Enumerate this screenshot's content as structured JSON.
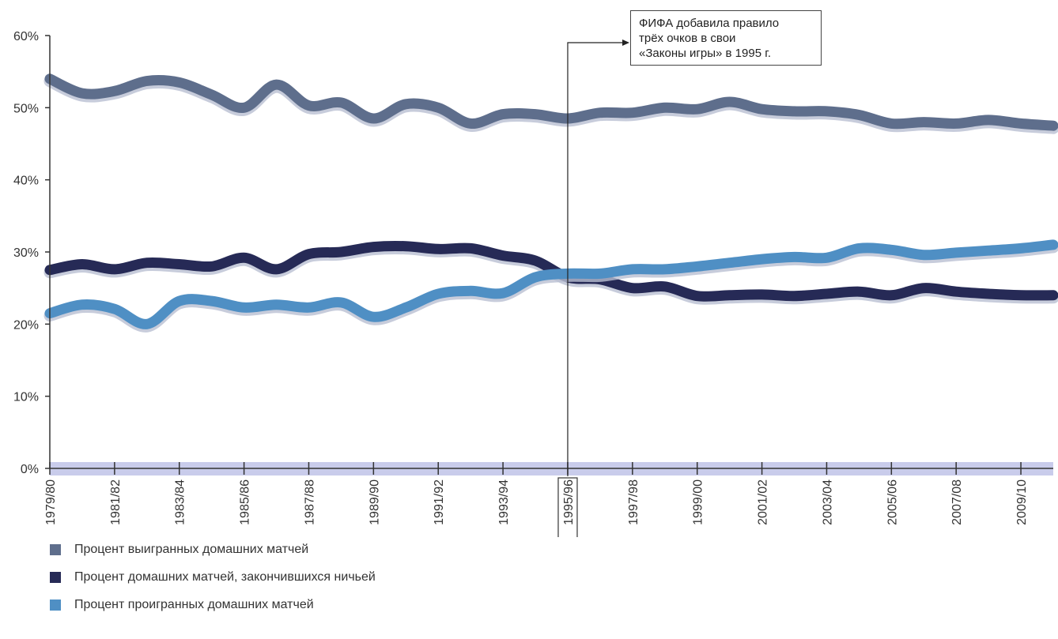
{
  "chart_data": {
    "type": "line",
    "title": "",
    "xlabel": "",
    "ylabel": "",
    "ylim": [
      0,
      60
    ],
    "yticks": [
      "0%",
      "10%",
      "20%",
      "30%",
      "40%",
      "50%",
      "60%"
    ],
    "yticks_values": [
      0,
      10,
      20,
      30,
      40,
      50,
      60
    ],
    "grid": false,
    "legend_position": "bottom-left",
    "x_labels": [
      "1979/80",
      "1981/82",
      "1983/84",
      "1985/86",
      "1987/88",
      "1989/90",
      "1991/92",
      "1993/94",
      "1995/96",
      "1997/98",
      "1999/00",
      "2001/02",
      "2003/04",
      "2005/06",
      "2007/08",
      "2009/10"
    ],
    "x_start_year": 1979,
    "x_end_year": 2009,
    "highlighted_label": "1995/96",
    "annotation": {
      "lines": [
        "ФИФА добавила правило",
        "трёх очков в свои",
        "«Законы игры» в 1995 г."
      ],
      "x": 1995
    },
    "series": [
      {
        "name": "Процент выигранных домашних матчей",
        "color": "#5e6e8c",
        "points": [
          [
            1979,
            54
          ],
          [
            1980,
            52
          ],
          [
            1981,
            52.3
          ],
          [
            1982,
            53.7
          ],
          [
            1983,
            53.5
          ],
          [
            1984,
            51.8
          ],
          [
            1985,
            50
          ],
          [
            1986,
            53.2
          ],
          [
            1987,
            50.3
          ],
          [
            1988,
            50.7
          ],
          [
            1989,
            48.5
          ],
          [
            1990,
            50.5
          ],
          [
            1991,
            50
          ],
          [
            1992,
            47.8
          ],
          [
            1993,
            49.1
          ],
          [
            1994,
            49.1
          ],
          [
            1995,
            48.5
          ],
          [
            1996,
            49.3
          ],
          [
            1997,
            49.3
          ],
          [
            1998,
            50
          ],
          [
            1999,
            49.8
          ],
          [
            2000,
            50.8
          ],
          [
            2001,
            49.8
          ],
          [
            2002,
            49.5
          ],
          [
            2003,
            49.5
          ],
          [
            2004,
            49
          ],
          [
            2005,
            47.8
          ],
          [
            2006,
            48
          ],
          [
            2007,
            47.8
          ],
          [
            2008,
            48.3
          ],
          [
            2009,
            47.8
          ],
          [
            2010,
            47.5
          ]
        ]
      },
      {
        "name": "Процент домашних матчей, закончившихся ничьей",
        "color": "#262a56",
        "points": [
          [
            1979,
            27.5
          ],
          [
            1980,
            28.3
          ],
          [
            1981,
            27.6
          ],
          [
            1982,
            28.5
          ],
          [
            1983,
            28.3
          ],
          [
            1984,
            28
          ],
          [
            1985,
            29.2
          ],
          [
            1986,
            27.6
          ],
          [
            1987,
            29.7
          ],
          [
            1988,
            30
          ],
          [
            1989,
            30.7
          ],
          [
            1990,
            30.8
          ],
          [
            1991,
            30.4
          ],
          [
            1992,
            30.5
          ],
          [
            1993,
            29.5
          ],
          [
            1994,
            28.8
          ],
          [
            1995,
            26.5
          ],
          [
            1996,
            26.2
          ],
          [
            1997,
            25
          ],
          [
            1998,
            25.2
          ],
          [
            1999,
            23.9
          ],
          [
            2000,
            24
          ],
          [
            2001,
            24.1
          ],
          [
            2002,
            23.9
          ],
          [
            2003,
            24.2
          ],
          [
            2004,
            24.5
          ],
          [
            2005,
            24
          ],
          [
            2006,
            25
          ],
          [
            2007,
            24.5
          ],
          [
            2008,
            24.2
          ],
          [
            2009,
            24
          ],
          [
            2010,
            24
          ]
        ]
      },
      {
        "name": "Процент проигранных домашних матчей",
        "color": "#4f8fc4",
        "points": [
          [
            1979,
            21.5
          ],
          [
            1980,
            22.7
          ],
          [
            1981,
            22.1
          ],
          [
            1982,
            20
          ],
          [
            1983,
            23.2
          ],
          [
            1984,
            23.2
          ],
          [
            1985,
            22.3
          ],
          [
            1986,
            22.7
          ],
          [
            1987,
            22.3
          ],
          [
            1988,
            23
          ],
          [
            1989,
            21
          ],
          [
            1990,
            22.3
          ],
          [
            1991,
            24.2
          ],
          [
            1992,
            24.6
          ],
          [
            1993,
            24.3
          ],
          [
            1994,
            26.5
          ],
          [
            1995,
            27
          ],
          [
            1996,
            27
          ],
          [
            1997,
            27.6
          ],
          [
            1998,
            27.6
          ],
          [
            1999,
            28
          ],
          [
            2000,
            28.5
          ],
          [
            2001,
            29
          ],
          [
            2002,
            29.3
          ],
          [
            2003,
            29.2
          ],
          [
            2004,
            30.5
          ],
          [
            2005,
            30.3
          ],
          [
            2006,
            29.6
          ],
          [
            2007,
            29.9
          ],
          [
            2008,
            30.2
          ],
          [
            2009,
            30.5
          ],
          [
            2010,
            31
          ]
        ]
      }
    ]
  }
}
